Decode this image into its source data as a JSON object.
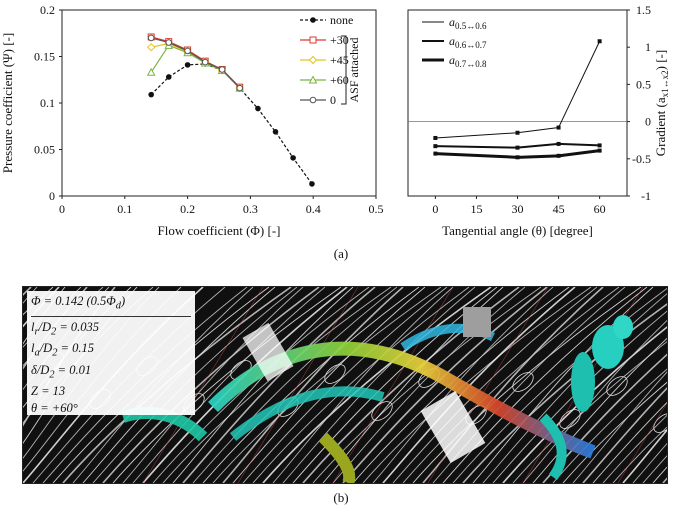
{
  "panel_a_label": "(a)",
  "panel_b_label": "(b)",
  "chart_data": [
    {
      "type": "line",
      "xlabel": "Flow coefficient (Φ) [-]",
      "ylabel": "Pressure coefficient (Ψ) [-]",
      "xlim": [
        0,
        0.5
      ],
      "ylim": [
        0,
        0.2
      ],
      "xticks": [
        "0",
        "0.1",
        "0.2",
        "0.3",
        "0.4",
        "0.5"
      ],
      "yticks": [
        "0",
        "0.05",
        "0.1",
        "0.15",
        "0.2"
      ],
      "legend_group_label": "ASF attached",
      "legend_placement": "top-right",
      "grid": false,
      "series": [
        {
          "name": "none",
          "color": "#111111",
          "marker": "filled-circle",
          "dashed": true,
          "x": [
            0.142,
            0.17,
            0.2,
            0.228,
            0.255,
            0.283,
            0.312,
            0.34,
            0.368,
            0.398
          ],
          "y": [
            0.109,
            0.128,
            0.141,
            0.142,
            0.135,
            0.116,
            0.094,
            0.069,
            0.041,
            0.013
          ]
        },
        {
          "name": "+30",
          "color": "#d93a2b",
          "marker": "open-square",
          "x": [
            0.142,
            0.17,
            0.2,
            0.228,
            0.255,
            0.283
          ],
          "y": [
            0.171,
            0.166,
            0.157,
            0.145,
            0.136,
            0.117
          ]
        },
        {
          "name": "+45",
          "color": "#e6c21c",
          "marker": "open-diamond",
          "x": [
            0.142,
            0.17,
            0.2,
            0.228,
            0.255,
            0.283
          ],
          "y": [
            0.16,
            0.164,
            0.155,
            0.143,
            0.135,
            0.116
          ]
        },
        {
          "name": "+60",
          "color": "#7cb342",
          "marker": "open-triangle",
          "x": [
            0.142,
            0.17,
            0.2,
            0.228,
            0.255,
            0.283
          ],
          "y": [
            0.133,
            0.162,
            0.154,
            0.143,
            0.135,
            0.116
          ]
        },
        {
          "name": "0",
          "color": "#555555",
          "marker": "open-circle",
          "x": [
            0.142,
            0.17,
            0.2,
            0.228,
            0.255,
            0.283
          ],
          "y": [
            0.17,
            0.165,
            0.156,
            0.144,
            0.136,
            0.116
          ]
        }
      ]
    },
    {
      "type": "line",
      "xlabel": "Tangential angle (θ) [degree]",
      "ylabel": "Gradient (a",
      "ylabel_sub": "x1↔x2",
      "ylabel_tail": ") [-]",
      "xlim": [
        -10,
        70
      ],
      "ylim": [
        -1,
        1.5
      ],
      "xticks": [
        "0",
        "15",
        "30",
        "45",
        "60"
      ],
      "yticks": [
        "-1",
        "-0.5",
        "0",
        "0.5",
        "1",
        "1.5"
      ],
      "y_axis_side": "right",
      "zero_line": true,
      "legend_placement": "top-left",
      "series": [
        {
          "name": "a",
          "sub": "0.5↔0.6",
          "color": "#111111",
          "width": 1,
          "x": [
            0,
            30,
            45,
            60
          ],
          "y": [
            -0.22,
            -0.15,
            -0.08,
            1.08
          ]
        },
        {
          "name": "a",
          "sub": "0.6↔0.7",
          "color": "#111111",
          "width": 2,
          "x": [
            0,
            30,
            45,
            60
          ],
          "y": [
            -0.33,
            -0.35,
            -0.3,
            -0.32
          ]
        },
        {
          "name": "a",
          "sub": "0.7↔0.8",
          "color": "#111111",
          "width": 3,
          "x": [
            0,
            30,
            45,
            60
          ],
          "y": [
            -0.43,
            -0.48,
            -0.46,
            -0.39
          ]
        }
      ]
    }
  ],
  "flow_panel": {
    "params": [
      {
        "lhs": "Φ = 0.142 (0.5Φ",
        "sub": "d",
        "tail": ")"
      },
      {
        "lhs": "l",
        "sub": "r",
        "tail": "/D",
        "sub2": "2",
        "tail2": " = 0.035"
      },
      {
        "lhs": "l",
        "sub": "a",
        "tail": "/D",
        "sub2": "2",
        "tail2": " = 0.15"
      },
      {
        "lhs": "δ/D",
        "sub": "2",
        "tail": " = 0.01"
      },
      {
        "lhs": "Z = 13",
        "sub": "",
        "tail": ""
      },
      {
        "lhs": "θ = +60°",
        "sub": "",
        "tail": ""
      }
    ]
  }
}
